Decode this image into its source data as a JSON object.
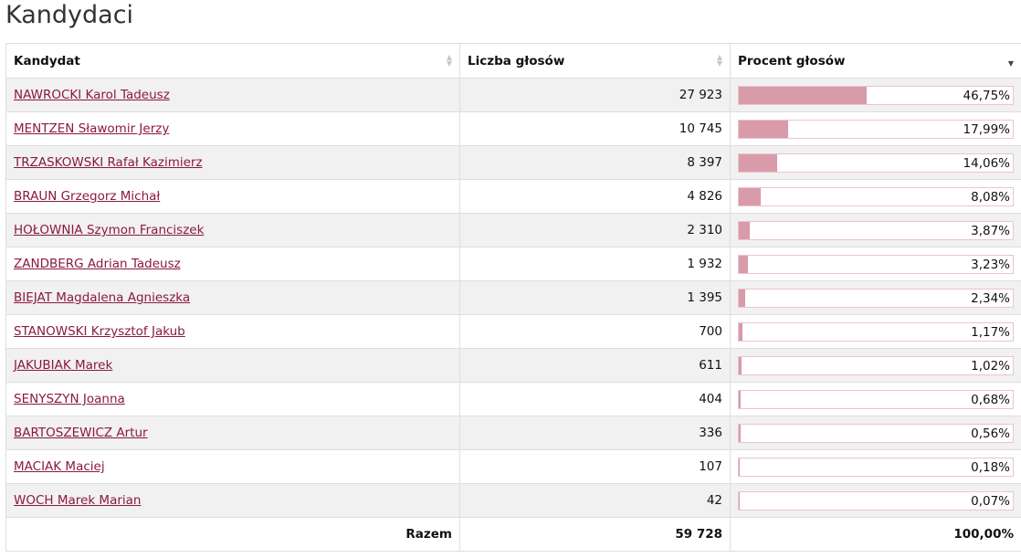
{
  "page": {
    "title": "Kandydaci"
  },
  "table": {
    "headers": {
      "candidate": "Kandydat",
      "votes": "Liczba głosów",
      "percent": "Procent głosów"
    },
    "sort": {
      "column": "percent",
      "direction": "descending"
    },
    "rows": [
      {
        "name": "NAWROCKI Karol Tadeusz",
        "votes": "27 923",
        "percent": "46,75%",
        "share": 46.75
      },
      {
        "name": "MENTZEN Sławomir Jerzy",
        "votes": "10 745",
        "percent": "17,99%",
        "share": 17.99
      },
      {
        "name": "TRZASKOWSKI Rafał Kazimierz",
        "votes": "8 397",
        "percent": "14,06%",
        "share": 14.06
      },
      {
        "name": "BRAUN Grzegorz Michał",
        "votes": "4 826",
        "percent": "8,08%",
        "share": 8.08
      },
      {
        "name": "HOŁOWNIA Szymon Franciszek",
        "votes": "2 310",
        "percent": "3,87%",
        "share": 3.87
      },
      {
        "name": "ZANDBERG Adrian Tadeusz",
        "votes": "1 932",
        "percent": "3,23%",
        "share": 3.23
      },
      {
        "name": "BIEJAT Magdalena Agnieszka",
        "votes": "1 395",
        "percent": "2,34%",
        "share": 2.34
      },
      {
        "name": "STANOWSKI Krzysztof Jakub",
        "votes": "700",
        "percent": "1,17%",
        "share": 1.17
      },
      {
        "name": "JAKUBIAK Marek",
        "votes": "611",
        "percent": "1,02%",
        "share": 1.02
      },
      {
        "name": "SENYSZYN Joanna",
        "votes": "404",
        "percent": "0,68%",
        "share": 0.68
      },
      {
        "name": "BARTOSZEWICZ Artur",
        "votes": "336",
        "percent": "0,56%",
        "share": 0.56
      },
      {
        "name": "MACIAK Maciej",
        "votes": "107",
        "percent": "0,18%",
        "share": 0.18
      },
      {
        "name": "WOCH Marek Marian",
        "votes": "42",
        "percent": "0,07%",
        "share": 0.07
      }
    ],
    "total": {
      "label": "Razem",
      "votes": "59 728",
      "percent": "100,00%"
    }
  },
  "icons": {
    "sort": "sort-arrows-icon"
  },
  "colors": {
    "link": "#8b1a3b",
    "bar_fill": "#d99ba9",
    "bar_border": "#e9c5cd",
    "row_stripe": "#f1f1f1"
  }
}
